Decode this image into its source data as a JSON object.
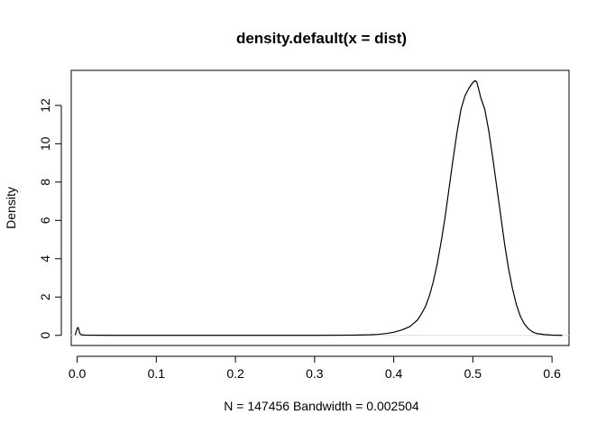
{
  "chart_data": {
    "type": "line",
    "title": "density.default(x = dist)",
    "xlabel": "N = 147456   Bandwidth = 0.002504",
    "ylabel": "Density",
    "xlim": [
      -0.0075,
      0.6215
    ],
    "ylim": [
      -0.53,
      13.83
    ],
    "xticks": [
      0.0,
      0.1,
      0.2,
      0.3,
      0.4,
      0.5,
      0.6
    ],
    "xtick_labels": [
      "0.0",
      "0.1",
      "0.2",
      "0.3",
      "0.4",
      "0.5",
      "0.6"
    ],
    "yticks": [
      0,
      2,
      4,
      6,
      8,
      10,
      12
    ],
    "ytick_labels": [
      "0",
      "2",
      "4",
      "6",
      "8",
      "10",
      "12"
    ],
    "grid": false,
    "legend": "none",
    "baseline": 0,
    "series": [
      {
        "color": "#000000",
        "x": [
          -0.0025,
          0.0,
          0.001,
          0.002,
          0.003,
          0.005,
          0.01,
          0.05,
          0.1,
          0.2,
          0.3,
          0.35,
          0.37,
          0.38,
          0.39,
          0.4,
          0.41,
          0.42,
          0.425,
          0.43,
          0.435,
          0.44,
          0.445,
          0.45,
          0.455,
          0.46,
          0.465,
          0.47,
          0.475,
          0.48,
          0.485,
          0.49,
          0.495,
          0.5,
          0.503,
          0.505,
          0.507,
          0.51,
          0.515,
          0.52,
          0.525,
          0.53,
          0.535,
          0.54,
          0.545,
          0.55,
          0.555,
          0.56,
          0.565,
          0.57,
          0.575,
          0.58,
          0.59,
          0.6,
          0.613
        ],
        "y": [
          0.02,
          0.35,
          0.42,
          0.32,
          0.12,
          0.03,
          0.01,
          0.0,
          0.0,
          0.0,
          0.0,
          0.01,
          0.03,
          0.05,
          0.09,
          0.16,
          0.28,
          0.45,
          0.62,
          0.8,
          1.12,
          1.5,
          2.05,
          2.8,
          3.75,
          4.9,
          6.2,
          7.7,
          9.2,
          10.6,
          11.8,
          12.5,
          12.9,
          13.2,
          13.3,
          13.2,
          12.9,
          12.4,
          11.8,
          10.7,
          9.3,
          7.8,
          6.3,
          4.8,
          3.5,
          2.45,
          1.6,
          1.0,
          0.6,
          0.35,
          0.19,
          0.1,
          0.04,
          0.01,
          0.0
        ]
      }
    ]
  }
}
